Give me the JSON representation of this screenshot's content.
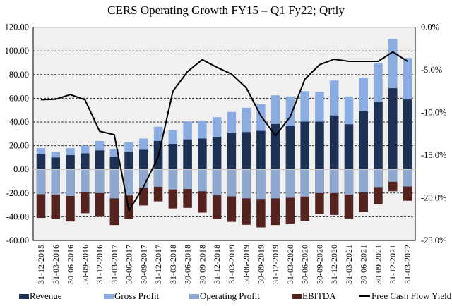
{
  "chart_data": {
    "type": "bar",
    "title": "CERS Operating Growth FY15 – Q1 Fy22; Qrtly",
    "xlabel": "",
    "ylabel": "",
    "ylim": [
      -60,
      120
    ],
    "yticks": [
      "120.00",
      "100.00",
      "80.00",
      "60.00",
      "40.00",
      "20.00",
      "0.00",
      "-20.00",
      "-40.00",
      "-60.00"
    ],
    "ytick_values": [
      120,
      100,
      80,
      60,
      40,
      20,
      0,
      -20,
      -40,
      -60
    ],
    "y2lim": [
      -25,
      0
    ],
    "y2ticks": [
      "0.0%",
      "-5.0%",
      "-10.0%",
      "-15.0%",
      "-20.0%",
      "-25.0%"
    ],
    "y2tick_values": [
      0,
      -5,
      -10,
      -15,
      -20,
      -25
    ],
    "grid": "horizontal dashed",
    "legend_position": "bottom",
    "categories": [
      "31-12-2015",
      "31-03-2016",
      "30-06-2016",
      "30-09-2016",
      "31-12-2016",
      "31-03-2017",
      "30-06-2017",
      "30-09-2017",
      "31-12-2017",
      "31-03-2018",
      "30-06-2018",
      "30-09-2018",
      "31-12-2018",
      "31-03-2019",
      "30-06-2019",
      "30-09-2019",
      "31-12-2019",
      "31-03-2020",
      "30-06-2020",
      "30-09-2020",
      "31-12-2020",
      "31-03-2021",
      "30-06-2021",
      "30-09-2021",
      "31-12-2021",
      "31-03-2022"
    ],
    "series": [
      {
        "name": "Revenue",
        "kind": "bar",
        "axis": "left",
        "color": "#1c3154",
        "values": [
          13,
          10,
          12,
          13.5,
          16,
          10.5,
          15,
          16.5,
          24,
          21.5,
          25.3,
          26,
          27.5,
          30.5,
          31.5,
          32.5,
          38.3,
          36.5,
          40.3,
          40.3,
          45.5,
          38,
          49,
          57,
          68.5,
          59
        ]
      },
      {
        "name": "Gross Profit",
        "kind": "bar",
        "axis": "left",
        "color": "#8aace0",
        "values": [
          18,
          14.5,
          18,
          20,
          24,
          17,
          23,
          26,
          36,
          33,
          40.5,
          41,
          44,
          48.5,
          52,
          55,
          62.5,
          61.5,
          66,
          65.5,
          75,
          61.5,
          77.5,
          90,
          110,
          94
        ]
      },
      {
        "name": "Operating Profit",
        "kind": "bar",
        "axis": "left",
        "color": "#8fa8cf",
        "values": [
          -21,
          -21.5,
          -22.5,
          -19,
          -20,
          -24.5,
          -22,
          -15.5,
          -14.7,
          -17,
          -16.6,
          -18.5,
          -22,
          -22.8,
          -24.5,
          -25,
          -24.5,
          -24,
          -23,
          -20,
          -20,
          -21.5,
          -19.5,
          -15,
          -10.5,
          -14.5
        ]
      },
      {
        "name": "EBITDA",
        "kind": "bar",
        "axis": "left",
        "color": "#542320",
        "values": [
          -41,
          -42,
          -44,
          -37,
          -40,
          -47,
          -42,
          -30.5,
          -27,
          -33,
          -32.5,
          -36.5,
          -42,
          -44.3,
          -46.8,
          -49,
          -47,
          -45.7,
          -43.5,
          -38,
          -38.5,
          -41.5,
          -36,
          -29.5,
          -18.5,
          -26.5
        ]
      },
      {
        "name": "Free Cash Flow Yield - %, TTM",
        "kind": "line",
        "axis": "right",
        "color": "#000000",
        "values": [
          -8.5,
          -8.45,
          -7.9,
          -8.5,
          -12.2,
          -12.6,
          -21.5,
          -18.7,
          -15.2,
          -7.5,
          -5.2,
          -3.8,
          -4.7,
          -5.5,
          -7.1,
          -10.4,
          -12.7,
          -10.5,
          -6.1,
          -4.4,
          -3.75,
          -4.0,
          -4.0,
          -4.0,
          -2.9,
          -4.0
        ]
      }
    ]
  }
}
